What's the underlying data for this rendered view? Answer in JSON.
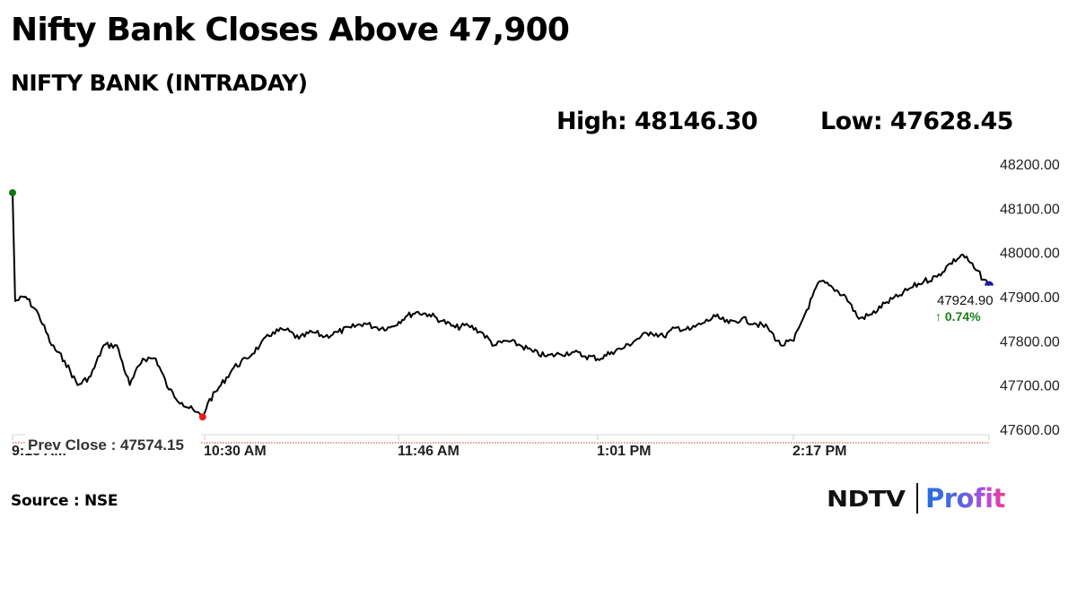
{
  "header": {
    "headline": "Nifty Bank Closes Above 47,900",
    "subtitle": "NIFTY BANK (INTRADAY)",
    "high_label": "High: 48146.30",
    "low_label": "Low: 47628.45"
  },
  "footer": {
    "source": "Source : NSE",
    "logo_left": "NDTV",
    "logo_right": "Profit"
  },
  "colors": {
    "line": "#000000",
    "open_marker": "#0a7a0a",
    "low_marker": "#ee1c1c",
    "close_marker": "#1a1aa8",
    "prev_close_line": "#c0392b",
    "change_positive": "#1a7f1a"
  },
  "chart_data": {
    "type": "line",
    "title": "NIFTY BANK (INTRADAY)",
    "xlabel": "",
    "ylabel": "",
    "ylim": [
      47600,
      48200
    ],
    "y_ticks": [
      "48200.00",
      "48100.00",
      "48000.00",
      "47900.00",
      "47800.00",
      "47700.00",
      "47600.00"
    ],
    "x_ticks": [
      "9:15 AM",
      "10:30 AM",
      "11:46 AM",
      "1:01 PM",
      "2:17 PM"
    ],
    "grid": false,
    "legend": null,
    "annotations": {
      "prev_close_label": "Prev Close : 47574.15",
      "prev_close_value": 47574.15,
      "last_value": "47924.90",
      "last_change": "0.74%",
      "day_high": 48146.3,
      "day_low": 47628.45
    },
    "series": [
      {
        "name": "NIFTY BANK",
        "x": [
          "9:15",
          "9:16",
          "9:20",
          "9:25",
          "9:30",
          "9:35",
          "9:40",
          "9:45",
          "9:50",
          "9:55",
          "10:00",
          "10:05",
          "10:10",
          "10:15",
          "10:20",
          "10:25",
          "10:28",
          "10:30",
          "10:35",
          "10:40",
          "10:45",
          "10:50",
          "10:55",
          "11:00",
          "11:05",
          "11:10",
          "11:15",
          "11:20",
          "11:25",
          "11:30",
          "11:35",
          "11:40",
          "11:46",
          "11:50",
          "11:55",
          "12:00",
          "12:05",
          "12:10",
          "12:15",
          "12:20",
          "12:25",
          "12:30",
          "12:35",
          "12:40",
          "12:45",
          "12:50",
          "12:55",
          "13:01",
          "13:05",
          "13:10",
          "13:15",
          "13:20",
          "13:25",
          "13:30",
          "13:35",
          "13:40",
          "13:45",
          "13:50",
          "13:55",
          "14:00",
          "14:05",
          "14:10",
          "14:15",
          "14:17",
          "14:20",
          "14:25",
          "14:30",
          "14:35",
          "14:40",
          "14:45",
          "14:50",
          "14:55",
          "15:00",
          "15:05",
          "15:10",
          "15:15",
          "15:20",
          "15:25",
          "15:30"
        ],
        "values": [
          48135,
          47890,
          47900,
          47860,
          47790,
          47755,
          47700,
          47720,
          47790,
          47790,
          47700,
          47760,
          47760,
          47690,
          47660,
          47640,
          47628,
          47660,
          47700,
          47740,
          47760,
          47790,
          47820,
          47825,
          47805,
          47820,
          47810,
          47820,
          47830,
          47840,
          47830,
          47830,
          47855,
          47865,
          47860,
          47845,
          47830,
          47835,
          47820,
          47790,
          47800,
          47790,
          47775,
          47765,
          47770,
          47775,
          47765,
          47760,
          47775,
          47785,
          47805,
          47820,
          47810,
          47830,
          47825,
          47840,
          47855,
          47840,
          47850,
          47840,
          47830,
          47790,
          47800,
          47830,
          47870,
          47935,
          47920,
          47900,
          47850,
          47860,
          47885,
          47900,
          47920,
          47935,
          47945,
          47975,
          47995,
          47960,
          47925
        ]
      }
    ]
  }
}
